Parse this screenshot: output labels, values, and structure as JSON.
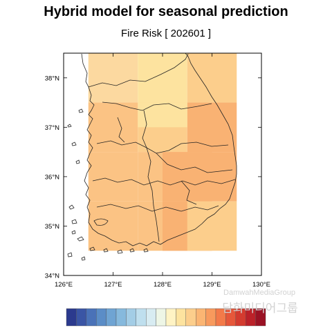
{
  "header": {
    "title": "Hybrid model for seasonal prediction",
    "subtitle": "Fire Risk [ 202601 ]"
  },
  "map": {
    "lon_ticks": [
      "126°E",
      "127°E",
      "128°E",
      "129°E",
      "130°E"
    ],
    "lat_ticks": [
      "38°N",
      "37°N",
      "36°N",
      "35°N",
      "34°N"
    ],
    "lon_range": [
      126,
      130
    ],
    "lat_range": [
      34,
      38.5
    ],
    "grid_cells": [
      {
        "lon": 126.5,
        "lat": 37.5,
        "color": "#fcd9a0"
      },
      {
        "lon": 127.5,
        "lat": 37.5,
        "color": "#fde39f"
      },
      {
        "lon": 128.5,
        "lat": 37.5,
        "color": "#fcce8c"
      },
      {
        "lon": 126.5,
        "lat": 36.5,
        "color": "#fbc384"
      },
      {
        "lon": 127.5,
        "lat": 36.5,
        "color": "#fcce8c"
      },
      {
        "lon": 127.5,
        "lat": 37.0,
        "color": "#fde39f",
        "size": 0.5
      },
      {
        "lon": 128.0,
        "lat": 37.0,
        "color": "#fde39f",
        "size": 0.5
      },
      {
        "lon": 128.5,
        "lat": 36.5,
        "color": "#f9b273"
      },
      {
        "lon": 126.5,
        "lat": 35.5,
        "color": "#fbc384"
      },
      {
        "lon": 127.5,
        "lat": 35.5,
        "color": "#fbc384"
      },
      {
        "lon": 128.0,
        "lat": 35.5,
        "color": "#f9b273"
      },
      {
        "lon": 128.5,
        "lat": 35.5,
        "color": "#f9b273"
      },
      {
        "lon": 126.5,
        "lat": 34.5,
        "color": "#fbc384"
      },
      {
        "lon": 127.5,
        "lat": 34.5,
        "color": "#fbc384"
      },
      {
        "lon": 128.0,
        "lat": 34.5,
        "color": "#f9b273"
      },
      {
        "lon": 128.5,
        "lat": 34.5,
        "color": "#fcce8c"
      }
    ],
    "grid_size_deg": 1.0
  },
  "colorbar": {
    "colors": [
      "#2b3a8e",
      "#3a55a5",
      "#4a72b8",
      "#5b8dc7",
      "#6fa4d3",
      "#86b9dd",
      "#a3cde6",
      "#bfdfee",
      "#d8ecf2",
      "#eef6e6",
      "#fff3c4",
      "#fde39f",
      "#fcce8c",
      "#fbb573",
      "#f89a5d",
      "#f37a49",
      "#e6573a",
      "#d33b2f",
      "#bb2129",
      "#9a1224"
    ]
  },
  "watermark": {
    "line1": "DamwahMediaGroup",
    "line2": "담화미디어그룹"
  }
}
